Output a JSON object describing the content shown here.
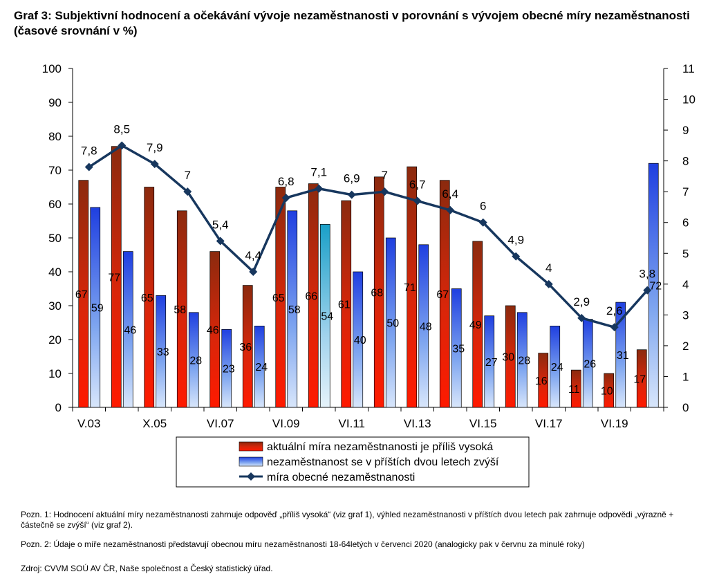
{
  "title": "Graf 3: Subjektivní hodnocení a očekávání vývoje nezaměstnanosti v porovnání s vývojem obecné míry nezaměstnanosti (časové srovnání v %)",
  "chart_data": {
    "type": "bar+line",
    "categories": [
      "V.03",
      "",
      "X.05",
      "",
      "VI.07",
      "",
      "VI.09",
      "",
      "VI.11",
      "",
      "VI.13",
      "",
      "VI.15",
      "",
      "VI.17",
      "",
      "VI.19",
      ""
    ],
    "series": [
      {
        "name": "aktuální míra nezaměstnanosti je příliš vysoká",
        "type": "bar",
        "axis": "left",
        "values": [
          67,
          77,
          65,
          58,
          46,
          36,
          65,
          66,
          61,
          68,
          71,
          67,
          49,
          30,
          16,
          11,
          10,
          17
        ],
        "color": "#a52a0a"
      },
      {
        "name": "nezaměstnanost se v příštích dvou letech zvýší",
        "type": "bar",
        "axis": "left",
        "values": [
          59,
          46,
          33,
          28,
          23,
          24,
          58,
          54,
          40,
          50,
          48,
          35,
          27,
          28,
          24,
          26,
          31,
          72
        ],
        "color": "#1f3fe0"
      },
      {
        "name": "míra obecné nezaměstnanosti",
        "type": "line",
        "axis": "right",
        "values": [
          7.8,
          8.5,
          7.9,
          7,
          5.4,
          4.4,
          6.8,
          7.1,
          6.9,
          7,
          6.7,
          6.4,
          6,
          4.9,
          4,
          2.9,
          2.6,
          3.8
        ],
        "labels": [
          "7,8",
          "8,5",
          "7,9",
          "7",
          "5,4",
          "4,4",
          "6,8",
          "7,1",
          "6,9",
          "7",
          "6,7",
          "6,4",
          "6",
          "4,9",
          "4",
          "2,9",
          "2,6",
          "3,8"
        ],
        "color": "#17375e"
      }
    ],
    "ylim_left": [
      0,
      100
    ],
    "yticks_left": [
      0,
      10,
      20,
      30,
      40,
      50,
      60,
      70,
      80,
      90,
      100
    ],
    "ylim_right": [
      0,
      11
    ],
    "yticks_right": [
      0,
      1,
      2,
      3,
      4,
      5,
      6,
      7,
      8,
      9,
      10,
      11
    ],
    "xlabel": "",
    "ylabel": "",
    "grid": false,
    "legend": "bottom"
  },
  "notes": {
    "note1": "Pozn. 1: Hodnocení aktuální míry nezaměstnanosti zahrnuje odpověď „příliš vysoká“ (viz graf 1), výhled nezaměstnanosti v příštích dvou letech pak zahrnuje odpovědi „výrazně + částečně se zvýší“ (viz graf 2).",
    "note2": "Pozn. 2: Údaje o míře nezaměstnanosti představují obecnou míru nezaměstnanosti 18-64letých v  červenci 2020 (analogicky pak v červnu za minulé roky)",
    "source": "Zdroj: CVVM SOÚ AV ČR, Naše společnost a Český statistický úřad."
  }
}
